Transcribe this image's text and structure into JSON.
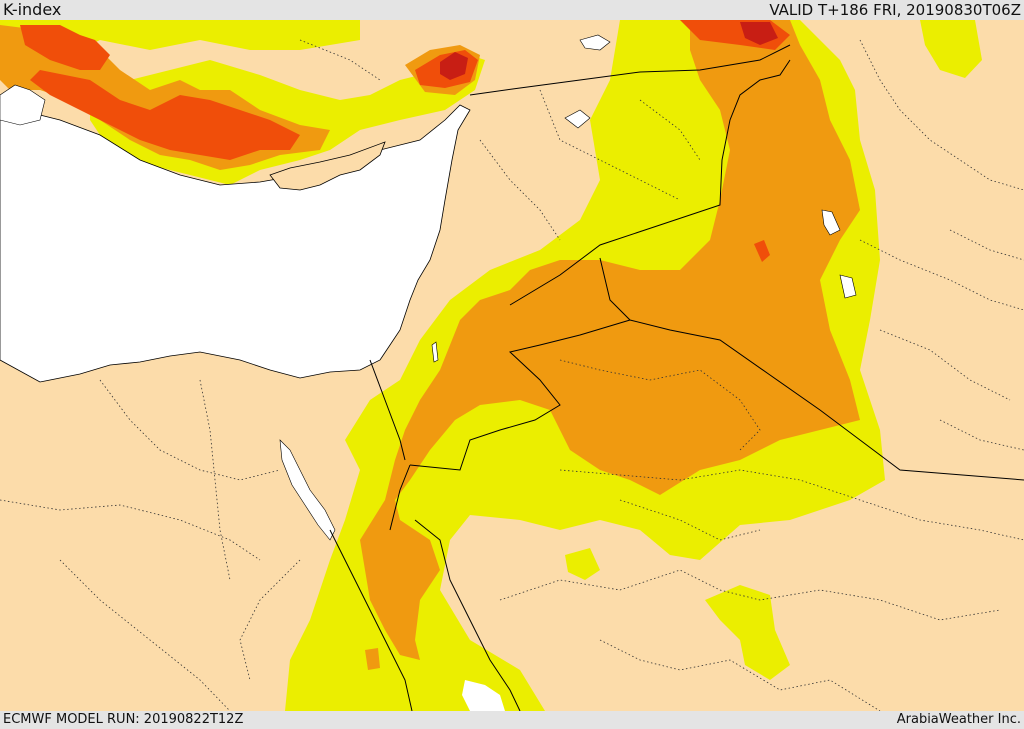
{
  "header": {
    "title": "K-index",
    "valid_time": "VALID T+186 FRI, 20190830T06Z"
  },
  "footer": {
    "model_run": "ECMWF MODEL RUN: 20190822T12Z",
    "credit": "ArabiaWeather Inc."
  },
  "map": {
    "parameter": "K-index",
    "region": "Eastern Mediterranean / Levant / Arabia",
    "colors": {
      "background": "#fcdcaa",
      "sea": "#ffffff",
      "level_1": "#ebee00",
      "level_2": "#f09a10",
      "level_3": "#f04e0a",
      "level_4": "#c81e14",
      "border": "#000000"
    }
  }
}
